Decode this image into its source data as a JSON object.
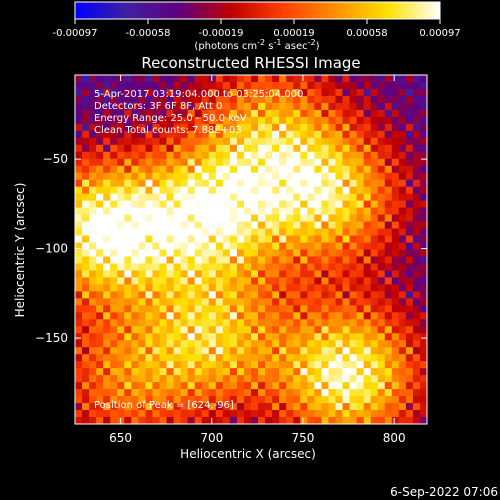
{
  "chart_data": {
    "type": "heatmap",
    "title": "Reconstructed RHESSI Image",
    "xlabel": "Heliocentric X (arcsec)",
    "ylabel": "Heliocentric Y (arcsec)",
    "xlim": [
      625,
      818
    ],
    "ylim": [
      -198,
      -3
    ],
    "xticks": [
      650,
      700,
      750,
      800
    ],
    "xtick_labels": [
      "650",
      "700",
      "750",
      "800"
    ],
    "yticks": [
      -50,
      -100,
      -150
    ],
    "ytick_labels": [
      "−50",
      "−100",
      "−150"
    ],
    "colorbar": {
      "range": [
        -0.00097,
        0.00097
      ],
      "tick_labels": [
        "-0.00097",
        "-0.00058",
        "-0.00019",
        "0.00019",
        "0.00058",
        "0.00097"
      ],
      "unit_text": "(photons cm",
      "unit_sup1": "-2",
      "unit_mid": " s",
      "unit_sup2": "-1",
      "unit_mid2": " asec",
      "unit_sup3": "-2",
      "unit_end": ")"
    },
    "info_lines": [
      "5-Apr-2017 03:19:04.000 to 03:25:04.000",
      "Detectors: 3F 6F 8F, Att 0",
      "Energy Range: 25.0 - 50.0 keV",
      "Clean    Total counts: 7.88E+03"
    ],
    "peak_text": "Position of Peak = [624,-96]",
    "peak_position": [
      624,
      -96
    ],
    "sources": [
      {
        "x": 640,
        "y": -90,
        "intensity": 1.0
      },
      {
        "x": 700,
        "y": -80,
        "intensity": 0.85
      },
      {
        "x": 765,
        "y": -70,
        "intensity": 0.8
      },
      {
        "x": 730,
        "y": -30,
        "intensity": 0.55
      },
      {
        "x": 700,
        "y": -150,
        "intensity": 0.7
      },
      {
        "x": 775,
        "y": -170,
        "intensity": 0.95
      },
      {
        "x": 650,
        "y": -175,
        "intensity": 0.5
      }
    ],
    "grid": false
  },
  "timestamp": "6-Sep-2022 07:06",
  "colors": {
    "background": "#000000",
    "text": "#ffffff",
    "colormap": [
      "#0000ff",
      "#4020a0",
      "#600080",
      "#c00000",
      "#ff4000",
      "#ff9000",
      "#ffe000",
      "#ffffff"
    ]
  }
}
